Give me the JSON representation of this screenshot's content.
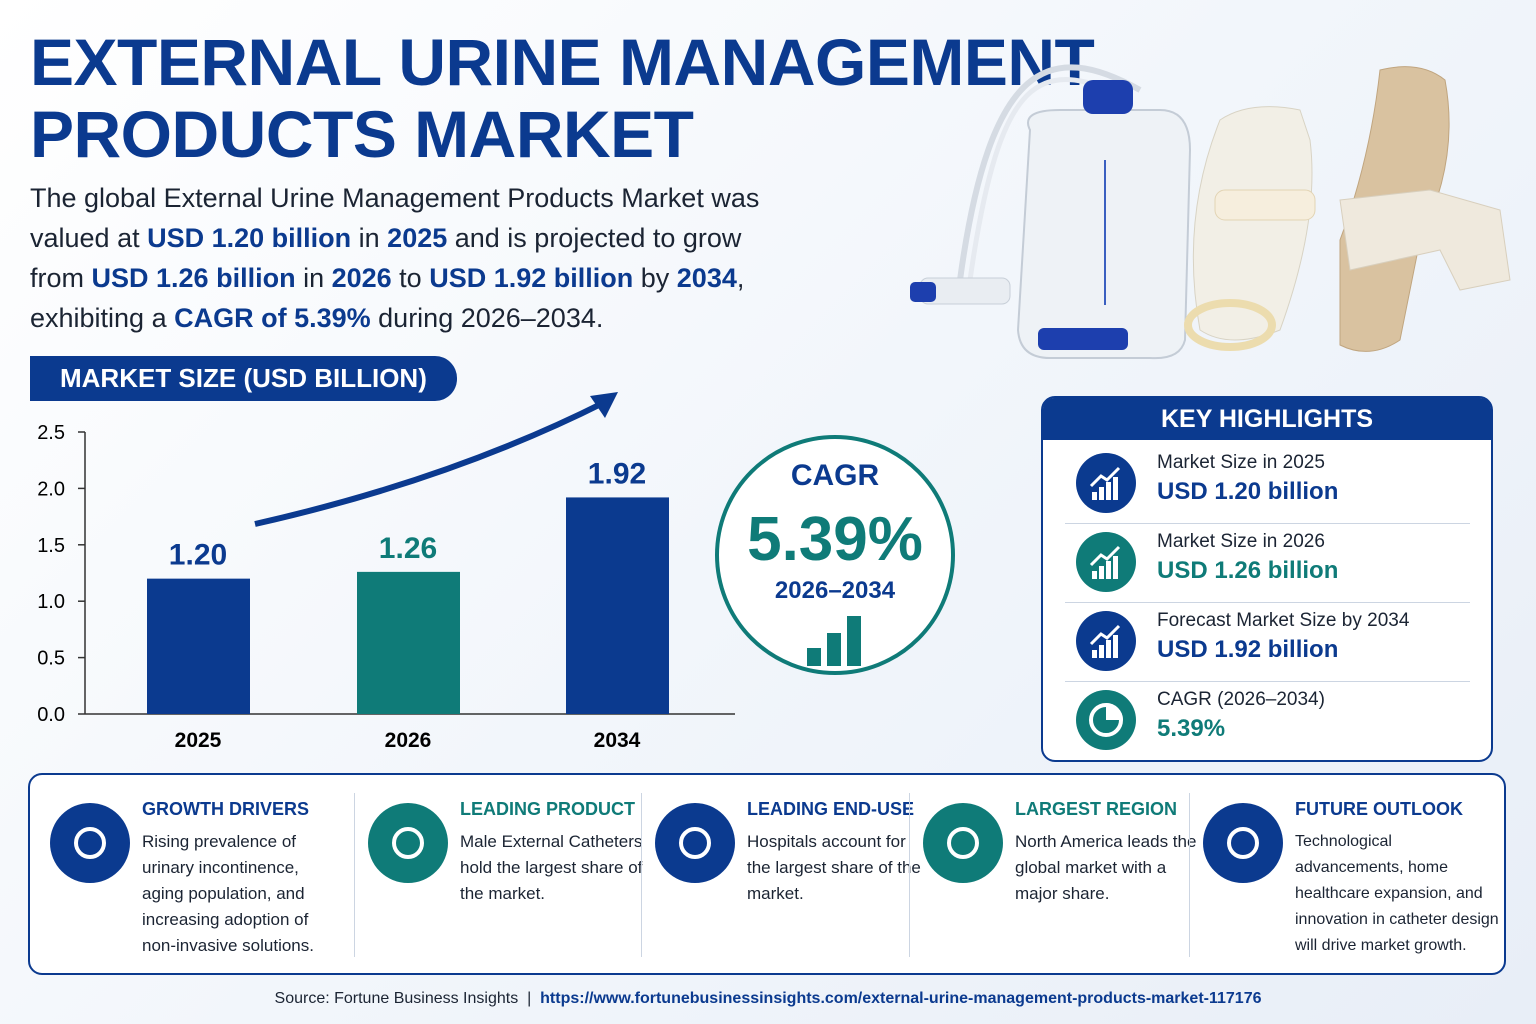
{
  "header": {
    "title_lines": [
      "EXTERNAL URINE MANAGEMENT",
      "PRODUCTS MARKET"
    ]
  },
  "intro": [
    {
      "text": "The global External Urine Management Products Market was valued at ",
      "strong": false
    },
    {
      "text": "USD 1.20 billion",
      "strong": true
    },
    {
      "text": " in ",
      "strong": false
    },
    {
      "text": "2025",
      "strong": true
    },
    {
      "text": " and is projected to grow from ",
      "strong": false
    },
    {
      "text": "USD 1.26 billion",
      "strong": true
    },
    {
      "text": " in ",
      "strong": false
    },
    {
      "text": "2026",
      "strong": true
    },
    {
      "text": " to ",
      "strong": false
    },
    {
      "text": "USD 1.92 billion",
      "strong": true
    },
    {
      "text": " by ",
      "strong": false
    },
    {
      "text": "2034",
      "strong": true
    },
    {
      "text": ", exhibiting a ",
      "strong": false
    },
    {
      "text": "CAGR of 5.39%",
      "strong": true
    },
    {
      "text": " during 2026–2034.",
      "strong": false
    }
  ],
  "chart_data": {
    "type": "bar",
    "title": "MARKET SIZE (USD BILLION)",
    "categories": [
      "2025",
      "2026",
      "2034"
    ],
    "values": [
      1.2,
      1.26,
      1.92
    ],
    "value_labels": [
      "1.20",
      "1.26",
      "1.92"
    ],
    "colors": [
      "#0b3a8f",
      "#0f7b78",
      "#0b3a8f"
    ],
    "ylim": [
      0,
      2.5
    ],
    "yticks": [
      {
        "value": 0,
        "label": "0.0"
      },
      0.5,
      {
        "value": 1,
        "label": "1.0"
      },
      1.5,
      {
        "value": 2,
        "label": "2.0"
      },
      2.5
    ]
  },
  "cagr": {
    "label": "CAGR",
    "value": "5.39%",
    "period": "2026–2034"
  },
  "key_highlights": {
    "title": "KEY HIGHLIGHTS",
    "items": [
      {
        "label": "Market Size in 2025",
        "value": "USD 1.20 billion",
        "color": "#0b3a8f"
      },
      {
        "label": "Market Size in 2026",
        "value": "USD 1.26 billion",
        "color": "#0f7b78"
      },
      {
        "label": "Forecast Market Size by 2034",
        "value": "USD 1.92 billion",
        "color": "#0b3a8f"
      },
      {
        "label": "CAGR (2026–2034)",
        "value": "5.39%",
        "color": "#0f7b78"
      }
    ]
  },
  "panels": [
    {
      "title": "GROWTH DRIVERS",
      "text": "Rising prevalence of urinary incontinence, aging population, and increasing adoption of non-invasive solutions.",
      "color": "#0b3a8f"
    },
    {
      "title": "LEADING PRODUCT",
      "text": "Male External Catheters hold the largest share of the market.",
      "color": "#0f7b78"
    },
    {
      "title": "LEADING END-USE",
      "text": "Hospitals account for the largest share of the market.",
      "color": "#0b3a8f"
    },
    {
      "title": "LARGEST REGION",
      "text": "North America leads the global market with a major share.",
      "color": "#0f7b78"
    },
    {
      "title": "FUTURE OUTLOOK",
      "text": "Technological advancements, home healthcare expansion, and innovation in catheter design will drive market growth.",
      "color": "#0b3a8f"
    }
  ],
  "footer": {
    "source": "Source: Fortune Business Insights",
    "separator": "|",
    "url": "https://www.fortunebusinessinsights.com/external-urine-management-products-market-117176"
  }
}
